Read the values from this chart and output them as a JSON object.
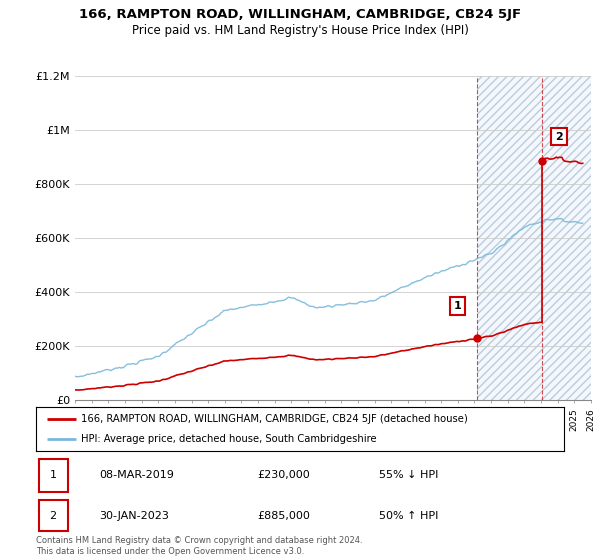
{
  "title": "166, RAMPTON ROAD, WILLINGHAM, CAMBRIDGE, CB24 5JF",
  "subtitle": "Price paid vs. HM Land Registry's House Price Index (HPI)",
  "hpi_label": "HPI: Average price, detached house, South Cambridgeshire",
  "price_label": "166, RAMPTON ROAD, WILLINGHAM, CAMBRIDGE, CB24 5JF (detached house)",
  "hpi_color": "#7ab8d9",
  "price_color": "#cc0000",
  "grid_color": "#cccccc",
  "sale1_date": "08-MAR-2019",
  "sale1_price": 230000,
  "sale1_label": "£230,000",
  "sale1_hpi": "55% ↓ HPI",
  "sale1_year": 2019.17,
  "sale2_date": "30-JAN-2023",
  "sale2_price": 885000,
  "sale2_label": "£885,000",
  "sale2_hpi": "50% ↑ HPI",
  "sale2_year": 2023.08,
  "ylim_max": 1200000,
  "xlim_start": 1995,
  "xlim_end": 2026,
  "footer": "Contains HM Land Registry data © Crown copyright and database right 2024.\nThis data is licensed under the Open Government Licence v3.0."
}
